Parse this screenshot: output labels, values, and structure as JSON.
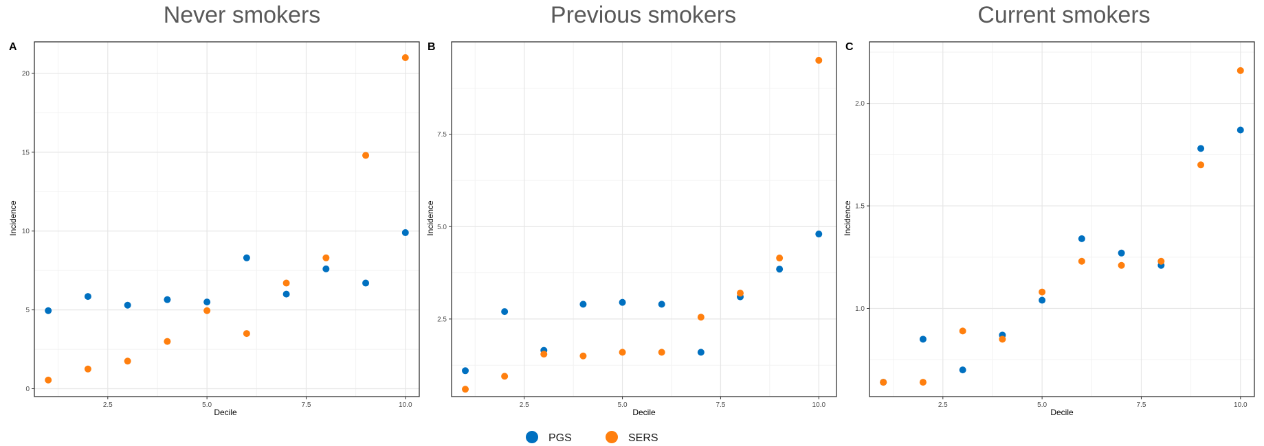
{
  "colors": {
    "PGS": "#0070C0",
    "SERS": "#FF7F0E",
    "grid_major": "#E6E6E6",
    "grid_minor": "#F2F2F2",
    "frame": "#333333"
  },
  "legend": {
    "placement": "bottom-center",
    "items": [
      {
        "label": "PGS",
        "color": "#0070C0"
      },
      {
        "label": "SERS",
        "color": "#FF7F0E"
      }
    ]
  },
  "chart_data": [
    {
      "type": "scatter",
      "panel": "A",
      "title": "Never smokers",
      "xlabel": "Decile",
      "ylabel": "Incidence",
      "xlim": [
        0.65,
        10.35
      ],
      "ylim": [
        -0.5,
        22.0
      ],
      "xticks": [
        2.5,
        5.0,
        7.5,
        10.0
      ],
      "xtick_labels": [
        "2.5",
        "5.0",
        "7.5",
        "10.0"
      ],
      "yticks": [
        0,
        5,
        10,
        15,
        20
      ],
      "ytick_labels": [
        "0",
        "5",
        "10",
        "15",
        "20"
      ],
      "grid": true,
      "series": [
        {
          "name": "PGS",
          "x": [
            1,
            2,
            3,
            4,
            5,
            6,
            7,
            8,
            9,
            10
          ],
          "y": [
            4.95,
            5.85,
            5.3,
            5.65,
            5.5,
            8.3,
            6.0,
            7.6,
            6.7,
            9.9
          ]
        },
        {
          "name": "SERS",
          "x": [
            1,
            2,
            3,
            4,
            5,
            6,
            7,
            8,
            9,
            10
          ],
          "y": [
            0.55,
            1.25,
            1.75,
            3.0,
            4.95,
            3.5,
            6.7,
            8.3,
            14.8,
            21.0
          ]
        }
      ]
    },
    {
      "type": "scatter",
      "panel": "B",
      "title": "Previous smokers",
      "xlabel": "Decile",
      "ylabel": "Incidence",
      "xlim": [
        0.65,
        10.45
      ],
      "ylim": [
        0.4,
        10.0
      ],
      "xticks": [
        2.5,
        5.0,
        7.5,
        10.0
      ],
      "xtick_labels": [
        "2.5",
        "5.0",
        "7.5",
        "10.0"
      ],
      "yticks": [
        2.5,
        5.0,
        7.5
      ],
      "ytick_labels": [
        "2.5",
        "5.0",
        "7.5"
      ],
      "grid": true,
      "series": [
        {
          "name": "PGS",
          "x": [
            1,
            2,
            3,
            4,
            5,
            6,
            7,
            8,
            9,
            10
          ],
          "y": [
            1.1,
            2.7,
            1.65,
            2.9,
            2.95,
            2.9,
            1.6,
            3.1,
            3.85,
            4.8
          ]
        },
        {
          "name": "SERS",
          "x": [
            1,
            2,
            3,
            4,
            5,
            6,
            7,
            8,
            9,
            10
          ],
          "y": [
            0.6,
            0.95,
            1.55,
            1.5,
            1.6,
            1.6,
            2.55,
            3.2,
            4.15,
            9.5
          ]
        }
      ]
    },
    {
      "type": "scatter",
      "panel": "C",
      "title": "Current smokers",
      "xlabel": "Decile",
      "ylabel": "Incidence",
      "xlim": [
        0.65,
        10.35
      ],
      "ylim": [
        0.57,
        2.3
      ],
      "xticks": [
        2.5,
        5.0,
        7.5,
        10.0
      ],
      "xtick_labels": [
        "2.5",
        "5.0",
        "7.5",
        "10.0"
      ],
      "yticks": [
        1.0,
        1.5,
        2.0
      ],
      "ytick_labels": [
        "1.0",
        "1.5",
        "2.0"
      ],
      "grid": true,
      "series": [
        {
          "name": "PGS",
          "x": [
            1,
            2,
            3,
            4,
            5,
            6,
            7,
            8,
            9,
            10
          ],
          "y": [
            0.64,
            0.85,
            0.7,
            0.87,
            1.04,
            1.34,
            1.27,
            1.21,
            1.78,
            1.87
          ]
        },
        {
          "name": "SERS",
          "x": [
            1,
            2,
            3,
            4,
            5,
            6,
            7,
            8,
            9,
            10
          ],
          "y": [
            0.64,
            0.64,
            0.89,
            0.85,
            1.08,
            1.23,
            1.21,
            1.23,
            1.7,
            2.16
          ]
        }
      ]
    }
  ]
}
